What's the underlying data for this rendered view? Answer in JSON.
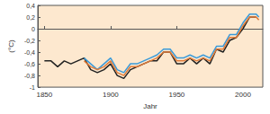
{
  "chart_data": {
    "type": "line",
    "xlabel": "Jahr",
    "ylabel": "(°C)",
    "x": [
      1850,
      1855,
      1860,
      1865,
      1870,
      1875,
      1880,
      1885,
      1890,
      1895,
      1900,
      1905,
      1910,
      1915,
      1920,
      1925,
      1930,
      1935,
      1940,
      1945,
      1950,
      1955,
      1960,
      1965,
      1970,
      1975,
      1980,
      1985,
      1990,
      1995,
      2000,
      2005,
      2010,
      2012
    ],
    "series": [
      {
        "color": "#222222",
        "values": [
          -0.55,
          -0.55,
          -0.65,
          -0.55,
          -0.6,
          -0.55,
          -0.5,
          -0.7,
          -0.75,
          -0.7,
          -0.6,
          -0.8,
          -0.85,
          -0.7,
          -0.65,
          -0.6,
          -0.55,
          -0.55,
          -0.4,
          -0.4,
          -0.6,
          -0.6,
          -0.5,
          -0.6,
          -0.5,
          -0.6,
          -0.35,
          -0.4,
          -0.2,
          -0.15,
          0.0,
          0.2,
          0.2,
          null
        ]
      },
      {
        "color": "#3a9ad9",
        "values": [
          null,
          null,
          null,
          null,
          null,
          null,
          -0.5,
          -0.6,
          -0.7,
          -0.6,
          -0.5,
          -0.7,
          -0.75,
          -0.6,
          -0.6,
          -0.55,
          -0.5,
          -0.45,
          -0.35,
          -0.35,
          -0.5,
          -0.5,
          -0.45,
          -0.5,
          -0.45,
          -0.5,
          -0.3,
          -0.3,
          -0.1,
          -0.1,
          0.1,
          0.25,
          0.25,
          0.2
        ]
      },
      {
        "color": "#e07b39",
        "values": [
          null,
          null,
          null,
          null,
          null,
          null,
          -0.55,
          -0.65,
          -0.7,
          -0.65,
          -0.55,
          -0.75,
          -0.8,
          -0.65,
          -0.65,
          -0.6,
          -0.55,
          -0.5,
          -0.4,
          -0.4,
          -0.55,
          -0.55,
          -0.5,
          -0.55,
          -0.5,
          -0.55,
          -0.35,
          -0.35,
          -0.15,
          -0.15,
          0.05,
          0.2,
          0.2,
          0.15
        ]
      }
    ],
    "xlim": [
      1845,
      2015
    ],
    "xticks": [
      1850,
      1900,
      1950,
      2000
    ],
    "ylim": [
      -1,
      0.4
    ],
    "yticks": [
      -1,
      {
        "value": -0.8,
        "label": "-0,8"
      },
      {
        "value": -0.6,
        "label": "-0,6"
      },
      {
        "value": -0.4,
        "label": "-0,4"
      },
      {
        "value": -0.2,
        "label": "-0,2"
      },
      0,
      {
        "value": 0.2,
        "label": "0,2"
      },
      {
        "value": 0.4,
        "label": "0,4"
      }
    ],
    "grid": false
  }
}
